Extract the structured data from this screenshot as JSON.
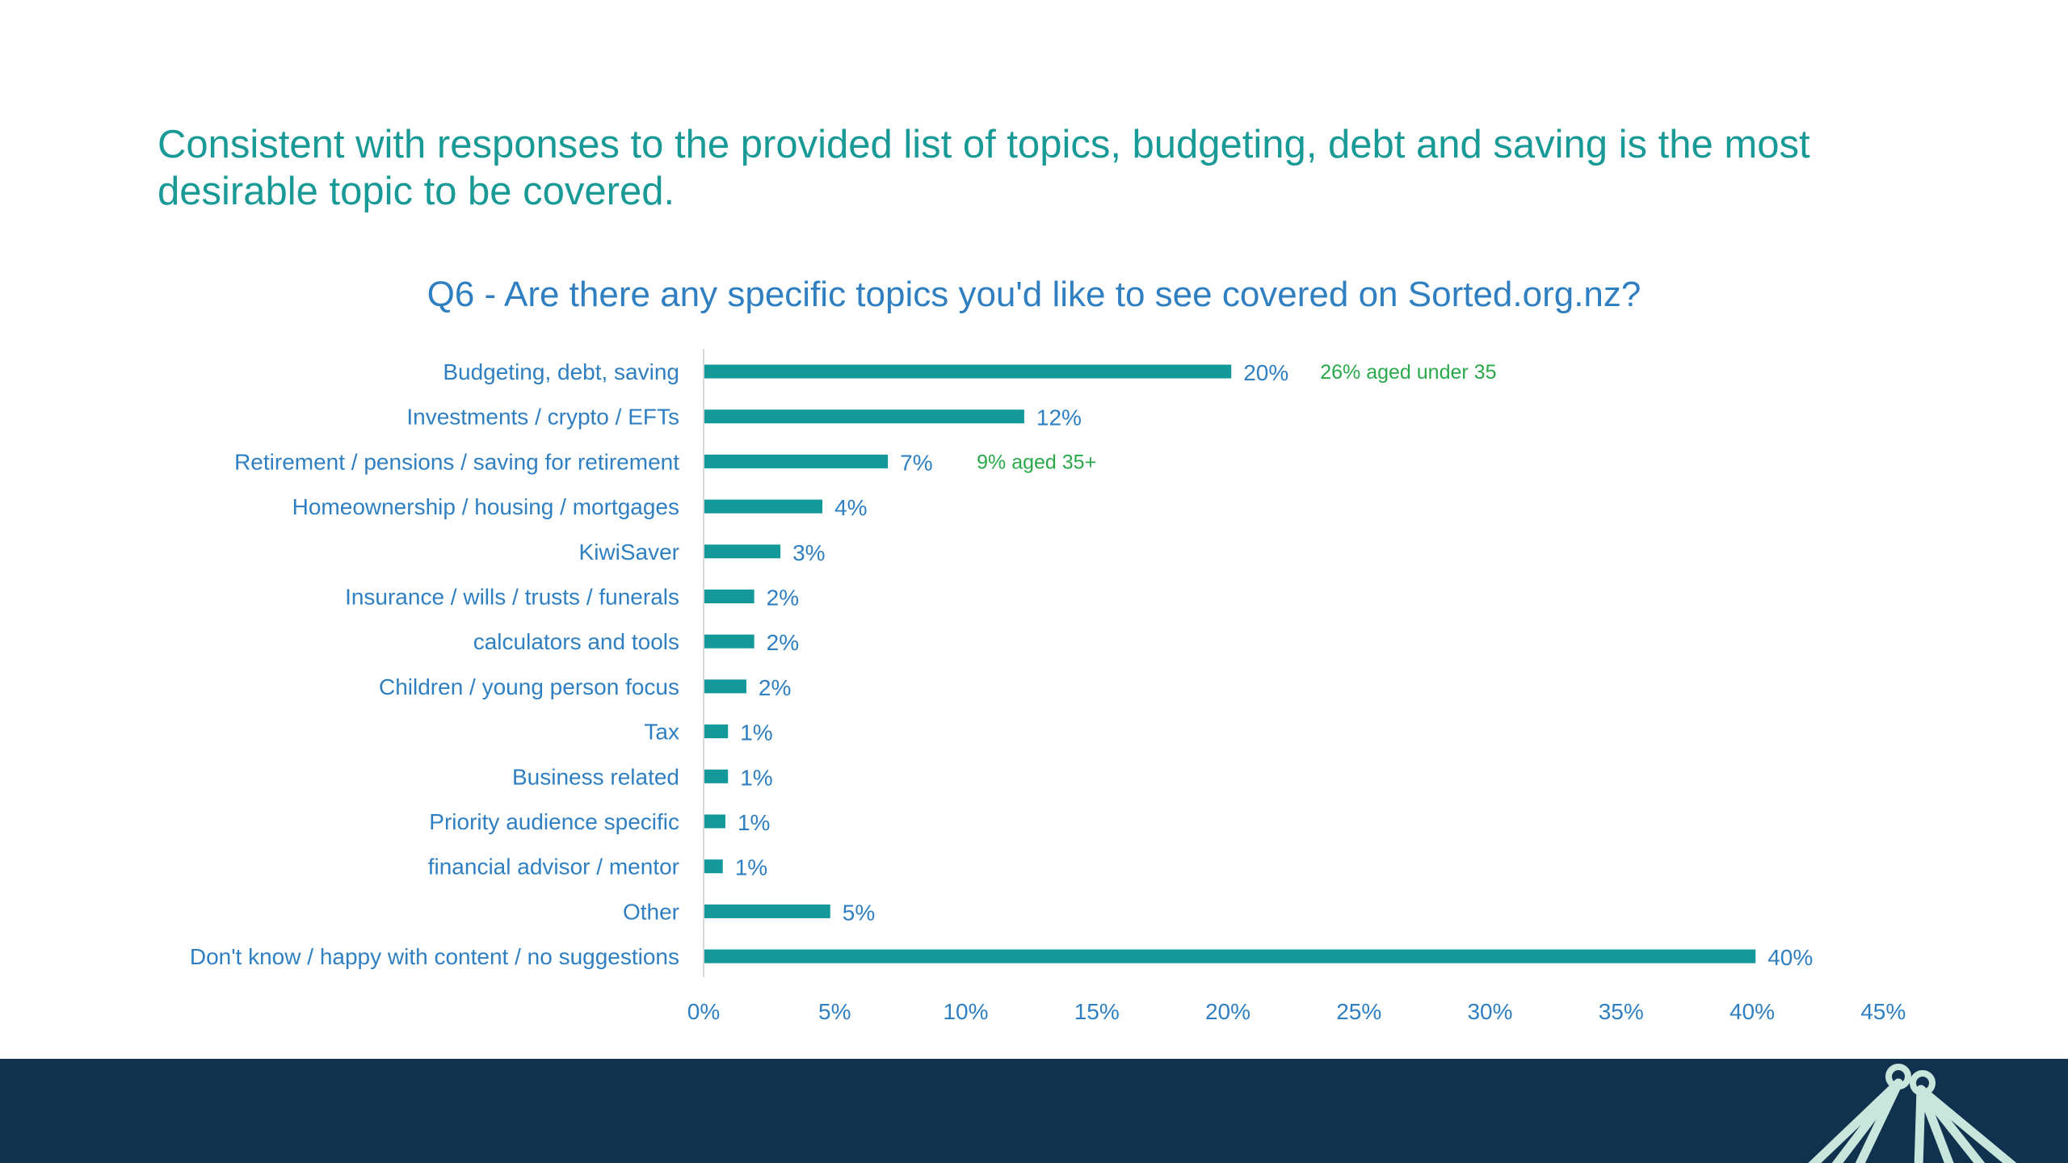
{
  "slide": {
    "headline": "Consistent with responses to the provided list of topics, budgeting, debt and saving is the most desirable topic to be covered."
  },
  "colors": {
    "bar": "#13999a",
    "headline": "#1a9a96",
    "title": "#2f7fc1",
    "label": "#2f7fc1",
    "annotation": "#2aa84a",
    "footer": "#10324f",
    "logo": "#c9e6dc"
  },
  "logo": {
    "icon": "leaf-fan-logo-icon"
  },
  "chart_data": {
    "type": "bar",
    "orientation": "horizontal",
    "title": "Q6 - Are there any specific topics you'd like to see covered on Sorted.org.nz?",
    "categories": [
      "Budgeting, debt, saving",
      "Investments / crypto / EFTs",
      "Retirement  / pensions / saving for retirement",
      "Homeownership / housing / mortgages",
      "KiwiSaver",
      "Insurance / wills / trusts / funerals",
      "calculators and tools",
      "Children / young person focus",
      "Tax",
      "Business related",
      "Priority audience specific",
      "financial advisor / mentor",
      "Other",
      "Don't know / happy with content / no suggestions"
    ],
    "values": [
      20.1,
      12.2,
      7.0,
      4.5,
      2.9,
      1.9,
      1.9,
      1.6,
      0.9,
      0.9,
      0.8,
      0.7,
      4.8,
      40.1
    ],
    "data_labels": [
      "20%",
      "12%",
      "7%",
      "4%",
      "3%",
      "2%",
      "2%",
      "2%",
      "1%",
      "1%",
      "1%",
      "1%",
      "5%",
      "40%"
    ],
    "annotations": [
      {
        "category_index": 0,
        "text": "26% aged under 35"
      },
      {
        "category_index": 2,
        "text": "9% aged 35+"
      }
    ],
    "xlim": [
      0,
      45
    ],
    "xticks": [
      "0%",
      "5%",
      "10%",
      "15%",
      "20%",
      "25%",
      "30%",
      "35%",
      "40%",
      "45%"
    ],
    "grid": false,
    "legend": "none"
  }
}
